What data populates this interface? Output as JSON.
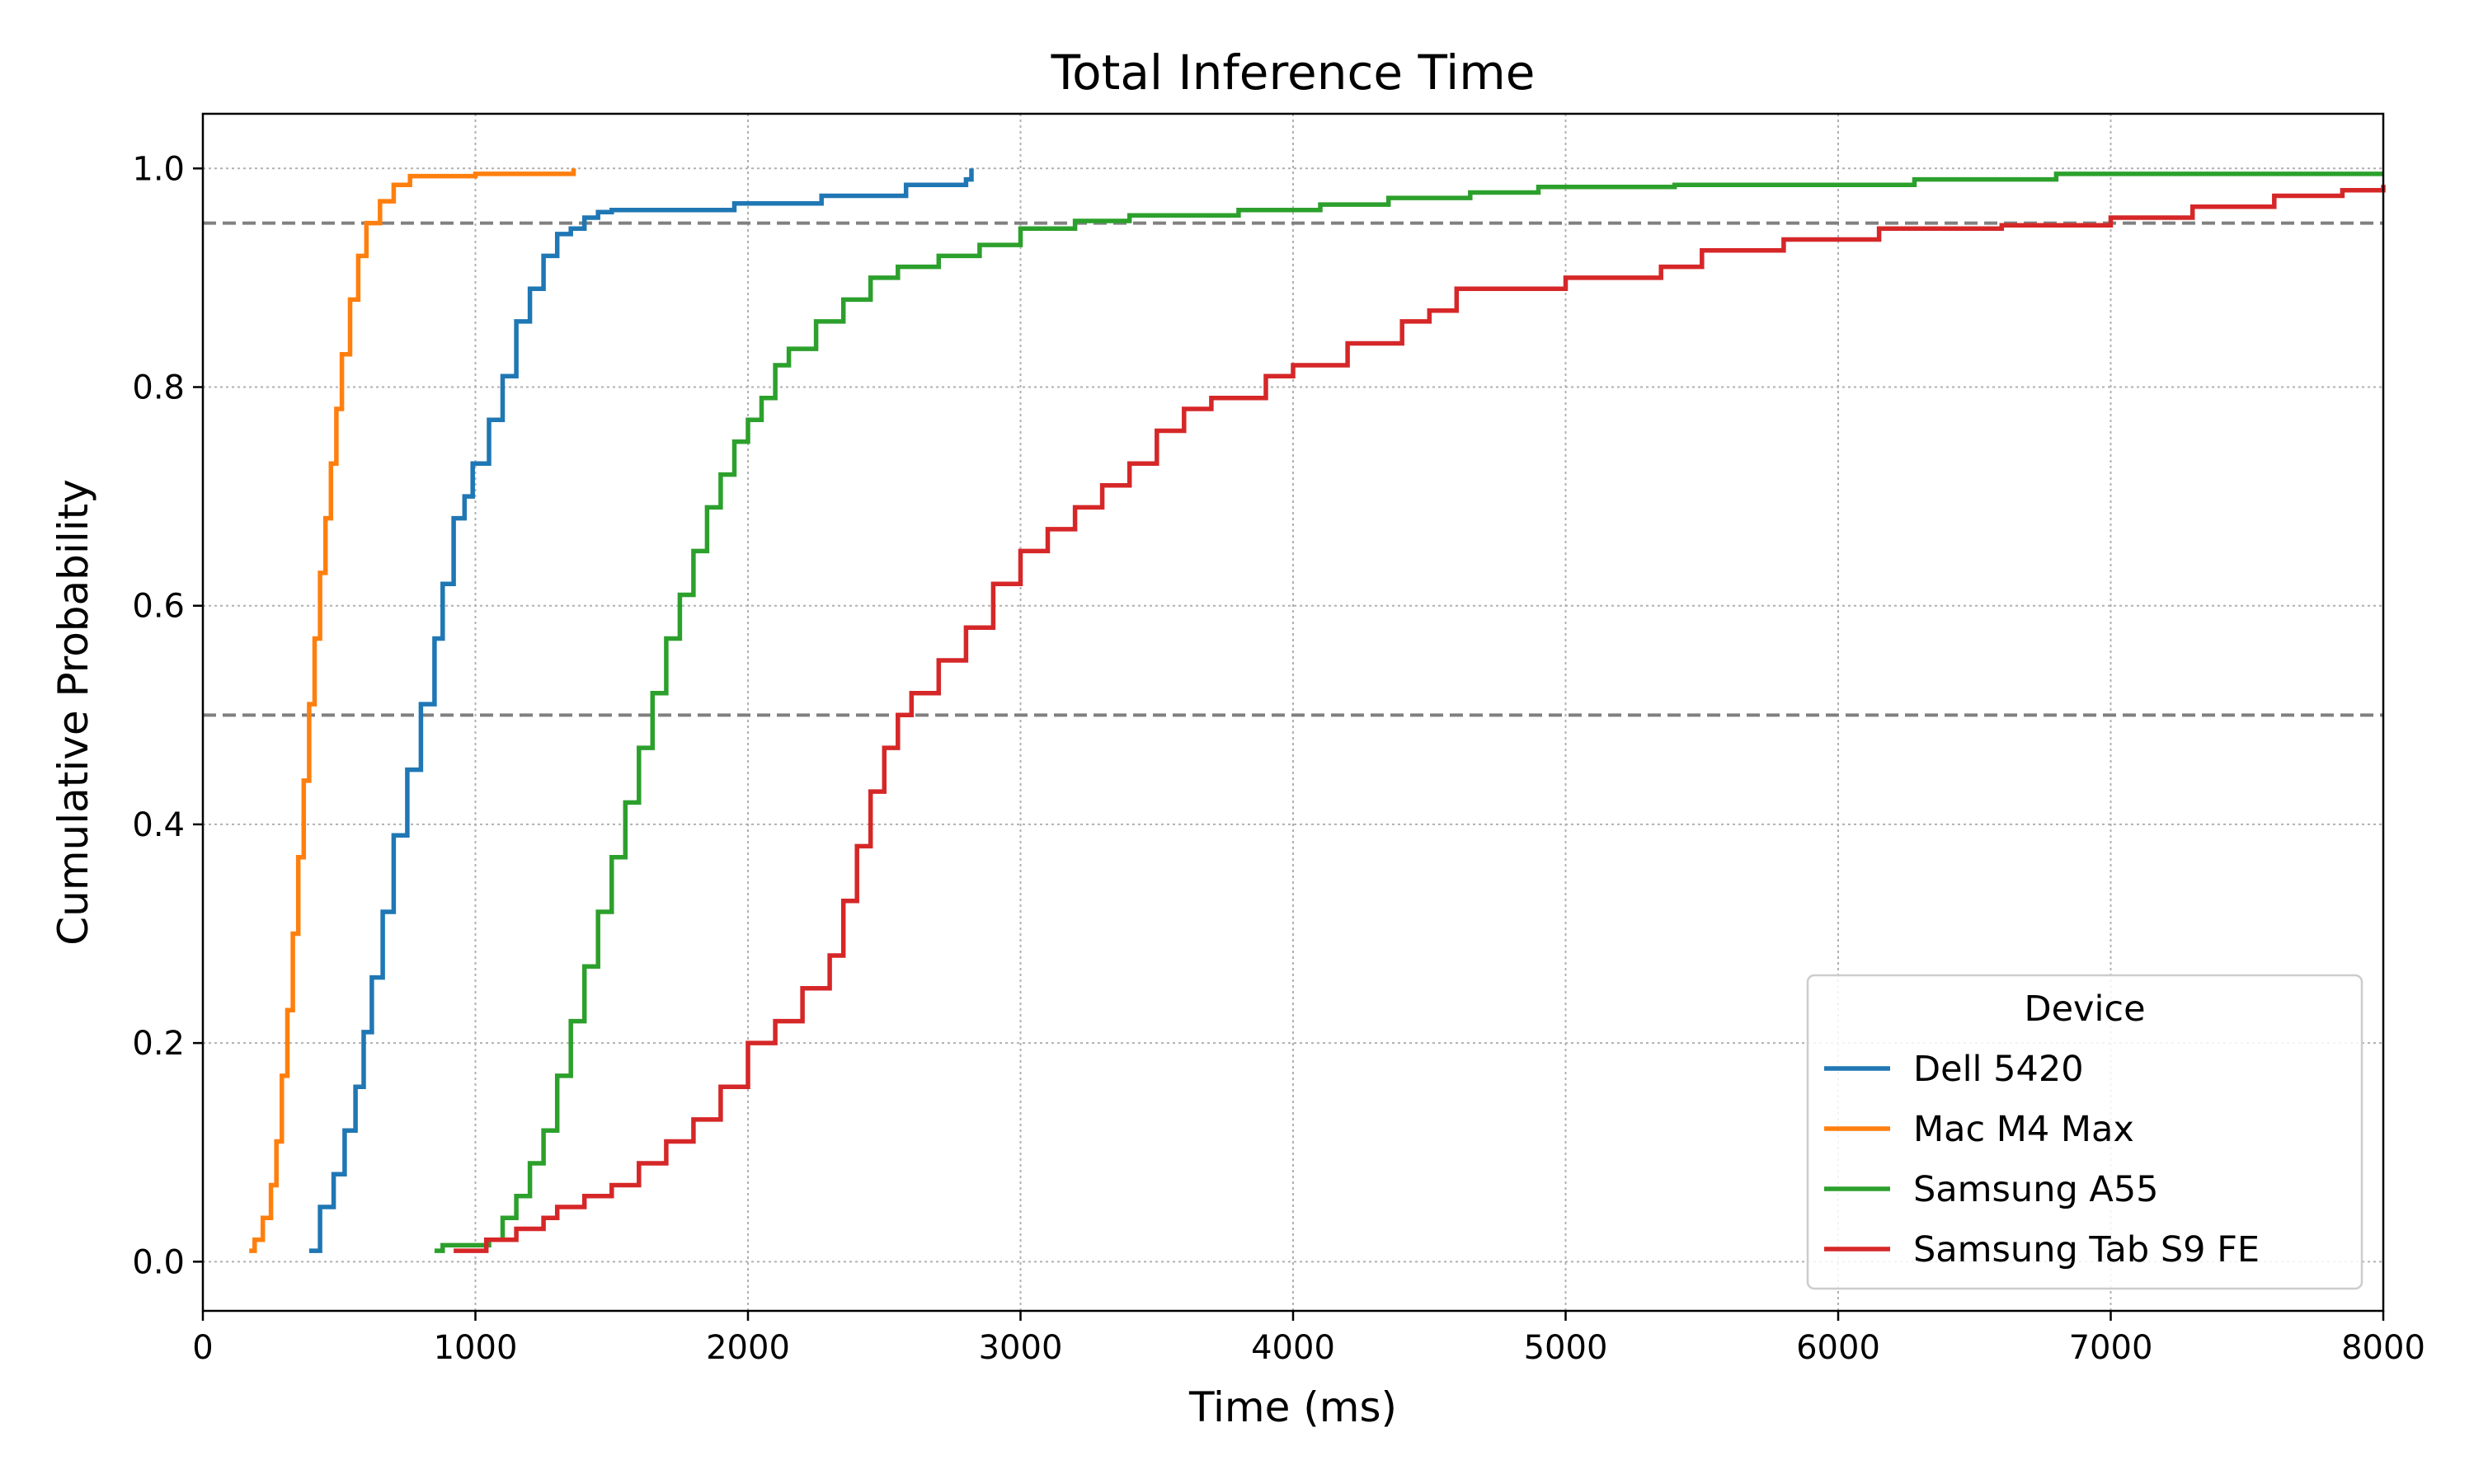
{
  "chart_data": {
    "type": "line",
    "title": "Total Inference Time",
    "xlabel": "Time (ms)",
    "ylabel": "Cumulative Probability",
    "xlim": [
      0,
      8000
    ],
    "ylim": [
      -0.045,
      1.05
    ],
    "x_ticks": [
      0,
      1000,
      2000,
      3000,
      4000,
      5000,
      6000,
      7000,
      8000
    ],
    "x_tick_labels": [
      "0",
      "1000",
      "2000",
      "3000",
      "4000",
      "5000",
      "6000",
      "7000",
      "8000"
    ],
    "y_ticks": [
      0.0,
      0.2,
      0.4,
      0.6,
      0.8,
      1.0
    ],
    "y_tick_labels": [
      "0.0",
      "0.2",
      "0.4",
      "0.6",
      "0.8",
      "1.0"
    ],
    "grid": true,
    "reference_lines": [
      0.5,
      0.95
    ],
    "legend": {
      "title": "Device",
      "position": "lower-right"
    },
    "series": [
      {
        "name": "Dell 5420",
        "color": "#1f77b4",
        "step": true,
        "x": [
          390,
          430,
          480,
          520,
          560,
          590,
          620,
          660,
          700,
          750,
          800,
          850,
          880,
          920,
          960,
          990,
          1050,
          1100,
          1150,
          1200,
          1250,
          1300,
          1350,
          1400,
          1450,
          1500,
          1950,
          2270,
          2580,
          2800,
          2820
        ],
        "y": [
          0.01,
          0.05,
          0.08,
          0.12,
          0.16,
          0.21,
          0.26,
          0.32,
          0.39,
          0.45,
          0.51,
          0.57,
          0.62,
          0.68,
          0.7,
          0.73,
          0.77,
          0.81,
          0.86,
          0.89,
          0.92,
          0.94,
          0.945,
          0.955,
          0.96,
          0.962,
          0.968,
          0.975,
          0.985,
          0.99,
          1.0
        ]
      },
      {
        "name": "Mac M4 Max",
        "color": "#ff7f0e",
        "step": true,
        "x": [
          170,
          190,
          220,
          250,
          270,
          290,
          310,
          330,
          350,
          370,
          390,
          410,
          430,
          450,
          470,
          490,
          510,
          540,
          570,
          600,
          650,
          700,
          760,
          1000,
          1360
        ],
        "y": [
          0.01,
          0.02,
          0.04,
          0.07,
          0.11,
          0.17,
          0.23,
          0.3,
          0.37,
          0.44,
          0.51,
          0.57,
          0.63,
          0.68,
          0.73,
          0.78,
          0.83,
          0.88,
          0.92,
          0.95,
          0.97,
          0.985,
          0.993,
          0.995,
          1.0
        ]
      },
      {
        "name": "Samsung A55",
        "color": "#2ca02c",
        "step": true,
        "x": [
          850,
          880,
          1050,
          1100,
          1150,
          1200,
          1250,
          1300,
          1350,
          1400,
          1450,
          1500,
          1550,
          1600,
          1650,
          1700,
          1750,
          1800,
          1850,
          1900,
          1950,
          2000,
          2050,
          2100,
          2150,
          2250,
          2350,
          2450,
          2550,
          2700,
          2850,
          3000,
          3200,
          3400,
          3800,
          4100,
          4350,
          4650,
          4900,
          5400,
          6280,
          6800,
          8000
        ],
        "y": [
          0.01,
          0.015,
          0.02,
          0.04,
          0.06,
          0.09,
          0.12,
          0.17,
          0.22,
          0.27,
          0.32,
          0.37,
          0.42,
          0.47,
          0.52,
          0.57,
          0.61,
          0.65,
          0.69,
          0.72,
          0.75,
          0.77,
          0.79,
          0.82,
          0.835,
          0.86,
          0.88,
          0.9,
          0.91,
          0.92,
          0.93,
          0.945,
          0.952,
          0.957,
          0.962,
          0.967,
          0.973,
          0.978,
          0.983,
          0.985,
          0.99,
          0.995,
          0.995
        ]
      },
      {
        "name": "Samsung Tab S9 FE",
        "color": "#d62728",
        "step": true,
        "x": [
          920,
          1040,
          1150,
          1250,
          1300,
          1400,
          1500,
          1600,
          1700,
          1800,
          1900,
          2000,
          2100,
          2200,
          2300,
          2350,
          2400,
          2450,
          2500,
          2550,
          2600,
          2700,
          2800,
          2900,
          3000,
          3100,
          3200,
          3300,
          3400,
          3500,
          3600,
          3700,
          3900,
          4000,
          4200,
          4400,
          4500,
          4600,
          5000,
          5350,
          5500,
          5800,
          6150,
          6350,
          6600,
          7000,
          7300,
          7600,
          7850,
          8000
        ],
        "y": [
          0.01,
          0.02,
          0.03,
          0.04,
          0.05,
          0.06,
          0.07,
          0.09,
          0.11,
          0.13,
          0.16,
          0.2,
          0.22,
          0.25,
          0.28,
          0.33,
          0.38,
          0.43,
          0.47,
          0.5,
          0.52,
          0.55,
          0.58,
          0.62,
          0.65,
          0.67,
          0.69,
          0.71,
          0.73,
          0.76,
          0.78,
          0.79,
          0.81,
          0.82,
          0.84,
          0.86,
          0.87,
          0.89,
          0.9,
          0.91,
          0.925,
          0.935,
          0.945,
          0.945,
          0.948,
          0.955,
          0.965,
          0.975,
          0.98,
          0.985
        ]
      }
    ]
  }
}
